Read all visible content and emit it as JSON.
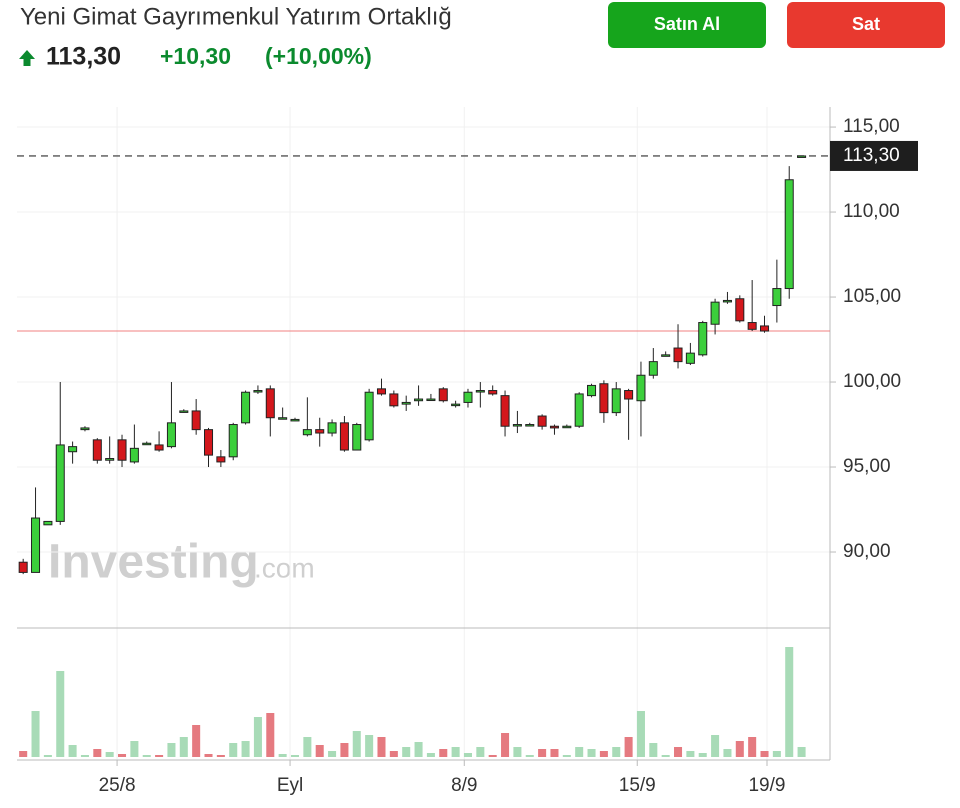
{
  "header": {
    "title": "Yeni Gimat Gayrımenkul Yatırım Ortaklığ",
    "price": "113,30",
    "change": "+10,30",
    "change_percent": "(+10,00%)",
    "buy_button": "Satın Al",
    "sell_button": "Sat"
  },
  "chart_data": {
    "type": "candlestick",
    "watermark": "Investing",
    "watermark_suffix": ".com",
    "open": [
      89.4,
      88.8,
      91.6,
      91.8,
      95.9,
      97.2,
      96.6,
      95.4,
      96.6,
      95.3,
      96.4,
      96.3,
      96.2,
      98.3,
      98.3,
      97.2,
      95.6,
      95.6,
      97.6,
      99.5,
      99.6,
      97.9,
      97.8,
      96.9,
      97.2,
      97.0,
      97.6,
      96.0,
      96.6,
      99.6,
      99.3,
      98.7,
      98.9,
      99.0,
      99.6,
      98.7,
      98.8,
      99.5,
      99.5,
      99.2,
      97.5,
      97.5,
      98.0,
      97.4,
      97.4,
      97.4,
      99.2,
      99.9,
      98.2,
      99.5,
      98.9,
      100.4,
      101.6,
      102.0,
      101.1,
      101.6,
      103.4,
      104.8,
      104.9,
      103.5,
      103.3,
      104.5,
      105.5,
      113.3
    ],
    "high": [
      89.6,
      93.8,
      91.8,
      100.0,
      96.5,
      97.4,
      96.7,
      96.8,
      96.9,
      97.5,
      96.5,
      97.1,
      100.0,
      98.4,
      99.0,
      97.3,
      96.0,
      97.6,
      99.5,
      99.8,
      99.8,
      98.5,
      97.9,
      99.1,
      97.9,
      97.8,
      98.0,
      97.6,
      99.6,
      100.2,
      99.5,
      99.2,
      99.8,
      99.3,
      99.7,
      98.9,
      99.6,
      100.0,
      99.8,
      99.5,
      98.3,
      97.6,
      98.1,
      97.5,
      97.5,
      99.4,
      99.9,
      100.1,
      100.0,
      99.6,
      101.2,
      102.0,
      101.8,
      103.4,
      102.3,
      103.6,
      104.9,
      105.3,
      105.1,
      106.0,
      103.9,
      107.2,
      112.7,
      113.3
    ],
    "low": [
      88.7,
      88.8,
      91.6,
      91.6,
      95.2,
      97.1,
      95.2,
      95.2,
      95.0,
      95.2,
      96.3,
      95.9,
      96.1,
      98.2,
      96.9,
      95.0,
      95.0,
      95.4,
      97.5,
      99.3,
      96.8,
      97.8,
      97.7,
      96.8,
      96.2,
      96.8,
      95.9,
      96.0,
      96.5,
      99.2,
      98.5,
      98.3,
      98.6,
      98.9,
      98.8,
      98.5,
      98.5,
      98.5,
      99.2,
      96.8,
      97.0,
      97.4,
      97.2,
      96.9,
      97.3,
      97.3,
      99.1,
      97.6,
      98.0,
      96.6,
      96.8,
      100.2,
      101.5,
      100.8,
      101.0,
      101.5,
      102.8,
      104.6,
      103.5,
      103.0,
      102.9,
      103.5,
      104.9,
      113.3
    ],
    "close": [
      88.8,
      92.0,
      91.8,
      96.3,
      96.2,
      97.3,
      95.4,
      95.5,
      95.4,
      96.1,
      96.4,
      96.0,
      97.6,
      98.3,
      97.2,
      95.7,
      95.3,
      97.5,
      99.4,
      99.5,
      97.9,
      97.9,
      97.8,
      97.2,
      97.0,
      97.6,
      96.0,
      97.5,
      99.4,
      99.3,
      98.6,
      98.8,
      99.0,
      99.0,
      98.9,
      98.7,
      99.4,
      99.5,
      99.3,
      97.4,
      97.5,
      97.5,
      97.4,
      97.3,
      97.4,
      99.3,
      99.8,
      98.2,
      99.6,
      99.0,
      100.4,
      101.2,
      101.6,
      101.2,
      101.7,
      103.5,
      104.7,
      104.8,
      103.6,
      103.1,
      103.0,
      105.5,
      111.9,
      113.3
    ],
    "volume": [
      6,
      46,
      2,
      86,
      12,
      2,
      8,
      5,
      3,
      16,
      2,
      2,
      14,
      20,
      32,
      3,
      2,
      14,
      16,
      40,
      44,
      3,
      2,
      20,
      12,
      6,
      14,
      26,
      22,
      20,
      6,
      10,
      15,
      4,
      8,
      10,
      4,
      10,
      2,
      24,
      10,
      2,
      8,
      8,
      2,
      10,
      8,
      6,
      10,
      20,
      46,
      14,
      2,
      10,
      6,
      4,
      22,
      8,
      16,
      20,
      6,
      6,
      110,
      10
    ],
    "up_color": "#3ccf3c",
    "down_color": "#d3171c",
    "volume_up_color": "#a8dbb7",
    "volume_down_color": "#e57a80",
    "last_price": {
      "value": 113.3,
      "label": "113,30"
    },
    "previous_close": 103.0,
    "xlim": [
      -0.5,
      65.3
    ],
    "xticks": [
      {
        "value": 7.6,
        "label": "25/8"
      },
      {
        "value": 21.6,
        "label": "Eyl"
      },
      {
        "value": 35.7,
        "label": "8/9"
      },
      {
        "value": 49.7,
        "label": "15/9"
      },
      {
        "value": 60.2,
        "label": "19/9"
      }
    ],
    "ylim": [
      85.53,
      116.18
    ],
    "yticks": [
      {
        "value": 90,
        "label": "90,00"
      },
      {
        "value": 95,
        "label": "95,00"
      },
      {
        "value": 100,
        "label": "100,00"
      },
      {
        "value": 105,
        "label": "105,00"
      },
      {
        "value": 110,
        "label": "110,00"
      },
      {
        "value": 115,
        "label": "115,00"
      }
    ],
    "volume_ylim": [
      0,
      120
    ],
    "grid": true
  }
}
